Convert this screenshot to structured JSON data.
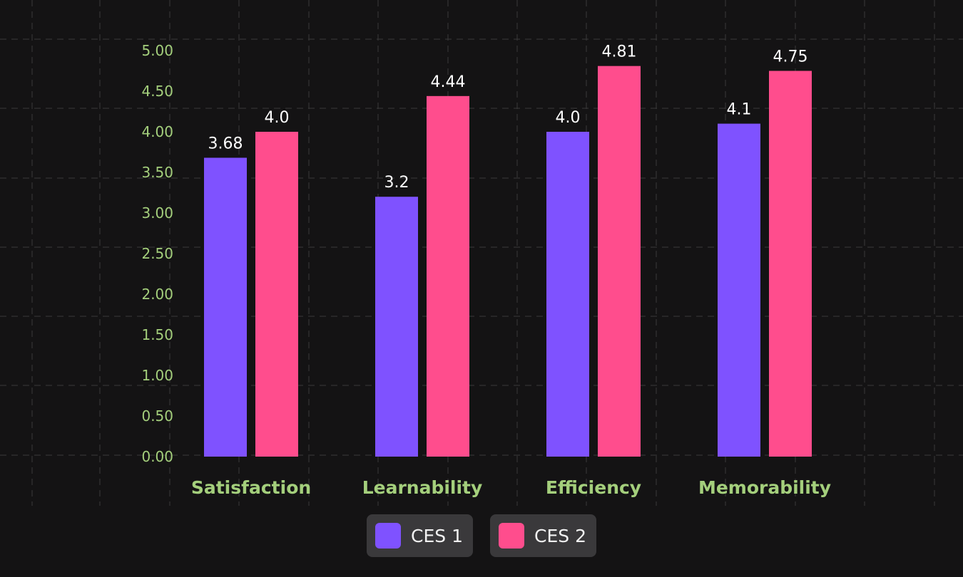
{
  "chart_data": {
    "type": "bar",
    "categories": [
      "Satisfaction",
      "Learnability",
      "Efficiency",
      "Memorability"
    ],
    "series": [
      {
        "name": "CES 1",
        "values": [
          3.68,
          3.2,
          4.0,
          4.1
        ],
        "labels": [
          "3.68",
          "3.2",
          "4.0",
          "4.1"
        ],
        "color": "#7f52ff"
      },
      {
        "name": "CES 2",
        "values": [
          4.0,
          4.44,
          4.81,
          4.75
        ],
        "labels": [
          "4.0",
          "4.44",
          "4.81",
          "4.75"
        ],
        "color": "#ff4d8d"
      }
    ],
    "yticks": [
      "0.00",
      "0.50",
      "1.00",
      "1.50",
      "2.00",
      "2.50",
      "3.00",
      "3.50",
      "4.00",
      "4.50",
      "5.00"
    ],
    "ylim": [
      0,
      5
    ],
    "grid": true,
    "legend_position": "bottom-center",
    "colors": {
      "background": "#141314",
      "grid": "#3a3a3a",
      "axis_text": "#a4cf7c",
      "value_text": "#ffffff",
      "legend_bg": "#3a393b"
    }
  }
}
